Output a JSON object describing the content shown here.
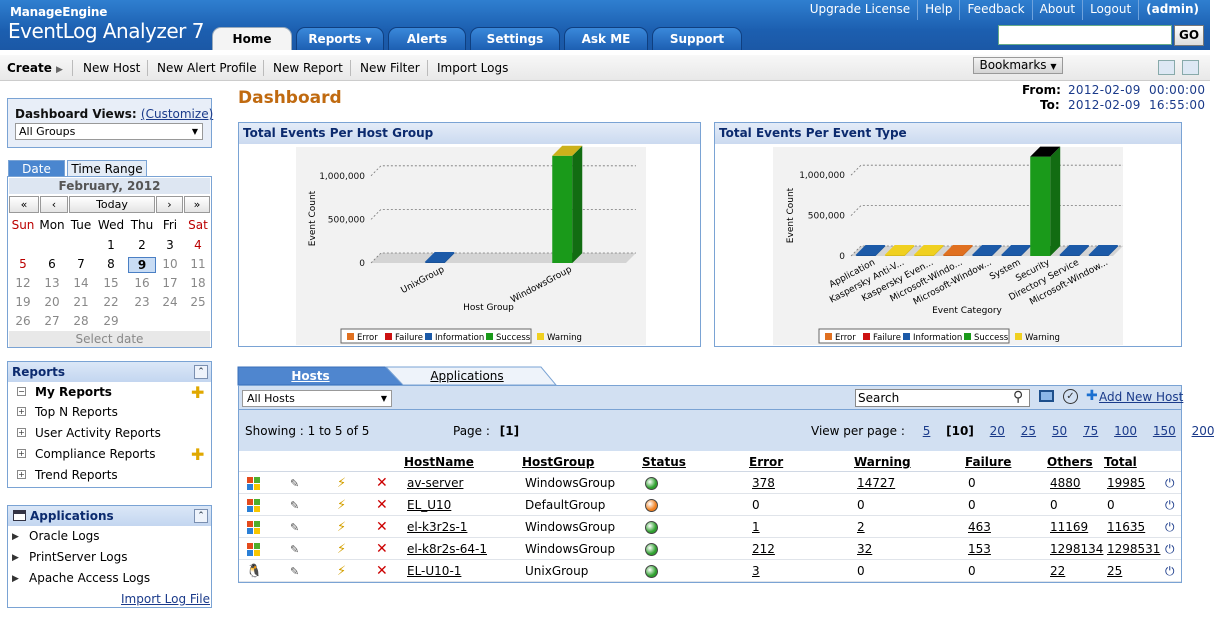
{
  "header": {
    "brand_top": "ManageEngine",
    "brand_main": "EventLog Analyzer 7",
    "top_links": [
      "Upgrade License",
      "Help",
      "Feedback",
      "About",
      "Logout"
    ],
    "user": "(admin)",
    "tabs": [
      "Home",
      "Reports",
      "Alerts",
      "Settings",
      "Ask ME",
      "Support"
    ],
    "search_value": "",
    "go_label": "GO"
  },
  "toolbar": {
    "create_label": "Create",
    "items": [
      "New Host",
      "New Alert Profile",
      "New Report",
      "New Filter",
      "Import Logs"
    ],
    "bookmarks_label": "Bookmarks"
  },
  "dashboard_views": {
    "label": "Dashboard Views:",
    "customize": "(Customize)",
    "selected": "All Groups"
  },
  "calendar": {
    "tabs": [
      "Date",
      "Time Range"
    ],
    "month": "February, 2012",
    "nav": [
      "«",
      "‹",
      "Today",
      "›",
      "»"
    ],
    "dow": [
      "Sun",
      "Mon",
      "Tue",
      "Wed",
      "Thu",
      "Fri",
      "Sat"
    ],
    "weeks": [
      [
        "",
        "",
        "",
        "1",
        "2",
        "3",
        "4"
      ],
      [
        "5",
        "6",
        "7",
        "8",
        "9",
        "10",
        "11"
      ],
      [
        "12",
        "13",
        "14",
        "15",
        "16",
        "17",
        "18"
      ],
      [
        "19",
        "20",
        "21",
        "22",
        "23",
        "24",
        "25"
      ],
      [
        "26",
        "27",
        "28",
        "29",
        "",
        "",
        ""
      ]
    ],
    "selected_day": "9",
    "select_date": "Select date"
  },
  "reports_panel": {
    "title": "Reports",
    "items": [
      "My Reports",
      "Top N Reports",
      "User Activity Reports",
      "Compliance Reports",
      "Trend Reports"
    ]
  },
  "apps_panel": {
    "title": "Applications",
    "items": [
      "Oracle Logs",
      "PrintServer Logs",
      "Apache Access Logs"
    ],
    "import_link": "Import Log File"
  },
  "main": {
    "title": "Dashboard",
    "from_label": "From:",
    "from_value": "2012-02-09  00:00:00",
    "to_label": "To:",
    "to_value": "2012-02-09  16:55:00"
  },
  "chart_data": [
    {
      "type": "bar",
      "title": "Total Events Per Host Group",
      "xlabel": "Host Group",
      "ylabel": "Event Count",
      "categories": [
        "UnixGroup",
        "WindowsGroup"
      ],
      "yticks": [
        "0",
        "500,000",
        "1,000,000"
      ],
      "ylim": [
        0,
        1250000
      ],
      "legend": [
        "Error",
        "Failure",
        "Information",
        "Success",
        "Warning"
      ],
      "colors": {
        "Error": "#e07020",
        "Failure": "#cc1111",
        "Information": "#1c5aa8",
        "Success": "#1a9a1a",
        "Warning": "#f0d020"
      },
      "series": [
        {
          "name": "Error",
          "values": [
            3,
            593
          ]
        },
        {
          "name": "Failure",
          "values": [
            0,
            616
          ]
        },
        {
          "name": "Information",
          "values": [
            22,
            0
          ]
        },
        {
          "name": "Success",
          "values": [
            0,
            1230000
          ]
        },
        {
          "name": "Warning",
          "values": [
            0,
            14761
          ]
        }
      ]
    },
    {
      "type": "bar",
      "title": "Total Events Per Event Type",
      "xlabel": "Event Category",
      "ylabel": "Event Count",
      "categories": [
        "Application",
        "Kaspersky Anti-V...",
        "Kaspersky Even...",
        "Microsoft-Windo...",
        "Microsoft-Window...",
        "System",
        "Security",
        "Directory Service",
        "Microsoft-Window..."
      ],
      "yticks": [
        "0",
        "500,000",
        "1,000,000"
      ],
      "ylim": [
        0,
        1250000
      ],
      "legend": [
        "Error",
        "Failure",
        "Information",
        "Success",
        "Warning"
      ],
      "colors": {
        "Error": "#e07020",
        "Failure": "#cc1111",
        "Information": "#1c5aa8",
        "Success": "#1a9a1a",
        "Warning": "#f0d020"
      },
      "series": [
        {
          "name": "Information",
          "values": [
            20000,
            0,
            0,
            0,
            20000,
            20000,
            0,
            20000,
            20000
          ]
        },
        {
          "name": "Warning",
          "values": [
            0,
            20000,
            30000,
            0,
            0,
            0,
            0,
            0,
            0
          ]
        },
        {
          "name": "Error",
          "values": [
            0,
            0,
            0,
            20000,
            0,
            0,
            0,
            0,
            0
          ]
        },
        {
          "name": "Success",
          "values": [
            0,
            0,
            0,
            0,
            0,
            0,
            1230000,
            0,
            0
          ]
        }
      ]
    }
  ],
  "hosts": {
    "tabs": [
      "Hosts",
      "Applications"
    ],
    "filter": "All Hosts",
    "search_placeholder": "Search",
    "add_host": "Add New Host",
    "showing_label": "Showing :",
    "showing_range": "1 to 5 of 5",
    "page_label": "Page :",
    "page_value": "[1]",
    "view_per_page_label": "View per page :",
    "per_page_options": [
      "5",
      "[10]",
      "20",
      "25",
      "50",
      "75",
      "100",
      "150",
      "200"
    ],
    "columns": [
      "HostName",
      "HostGroup",
      "Status",
      "Error",
      "Warning",
      "Failure",
      "Others",
      "Total"
    ],
    "rows": [
      {
        "os": "windows",
        "name": "av-server",
        "group": "WindowsGroup",
        "status": "#2ea02e",
        "error": "378",
        "warning": "14727",
        "failure": "0",
        "others": "4880",
        "total": "19985"
      },
      {
        "os": "windows",
        "name": "EL_U10",
        "group": "DefaultGroup",
        "status": "#f08020",
        "error": "0",
        "warning": "0",
        "failure": "0",
        "others": "0",
        "total": "0"
      },
      {
        "os": "windows",
        "name": "el-k3r2s-1",
        "group": "WindowsGroup",
        "status": "#2ea02e",
        "error": "1",
        "warning": "2",
        "failure": "463",
        "others": "11169",
        "total": "11635"
      },
      {
        "os": "windows",
        "name": "el-k8r2s-64-1",
        "group": "WindowsGroup",
        "status": "#2ea02e",
        "error": "212",
        "warning": "32",
        "failure": "153",
        "others": "1298134",
        "total": "1298531"
      },
      {
        "os": "linux",
        "name": "EL-U10-1",
        "group": "UnixGroup",
        "status": "#2ea02e",
        "error": "3",
        "warning": "0",
        "failure": "0",
        "others": "22",
        "total": "25"
      }
    ]
  }
}
